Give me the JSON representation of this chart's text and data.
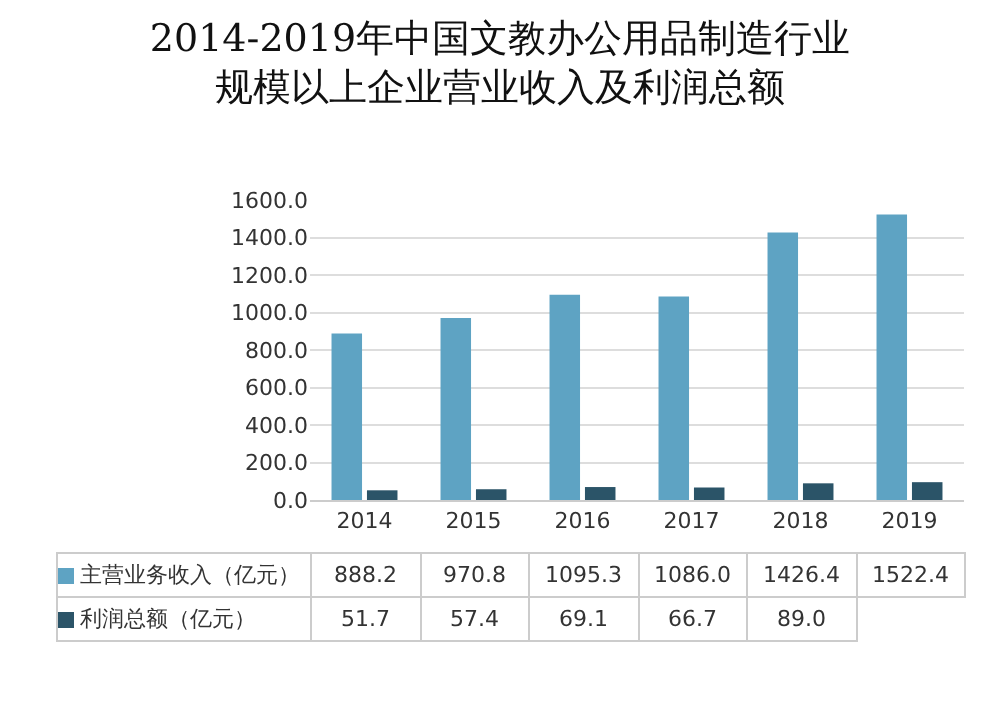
{
  "chart_data": {
    "type": "bar",
    "title": "2014-2019年中国文教办公用品制造行业规模以上企业营业收入及利润总额",
    "categories": [
      "2014",
      "2015",
      "2016",
      "2017",
      "2018",
      "2019"
    ],
    "series": [
      {
        "name": "主营业务收入（亿元）",
        "color": "#5ea3c3",
        "values": [
          888.2,
          970.8,
          1095.3,
          1086.0,
          1426.4,
          1522.4
        ],
        "value_labels": [
          "888.2",
          "970.8",
          "1095.3",
          "1086.0",
          "1426.4",
          "1522.4"
        ]
      },
      {
        "name": "利润总额（亿元）",
        "color": "#2b5468",
        "values": [
          51.7,
          57.4,
          69.1,
          66.7,
          89.0,
          95
        ],
        "value_labels": [
          "51.7",
          "57.4",
          "69.1",
          "66.7",
          "89.0",
          null
        ]
      }
    ],
    "ylim": [
      0,
      1600
    ],
    "yticks": [
      {
        "value": 0,
        "label": "0.0"
      },
      {
        "value": 200,
        "label": "200.0"
      },
      {
        "value": 400,
        "label": "400.0"
      },
      {
        "value": 600,
        "label": "600.0"
      },
      {
        "value": 800,
        "label": "800.0"
      },
      {
        "value": 1000,
        "label": "1000.0"
      },
      {
        "value": 1200,
        "label": "1200.0"
      },
      {
        "value": 1400,
        "label": "1400.0"
      },
      {
        "value": 1600,
        "label": "1600.0"
      }
    ],
    "grid": "y",
    "legend": "bottom"
  }
}
